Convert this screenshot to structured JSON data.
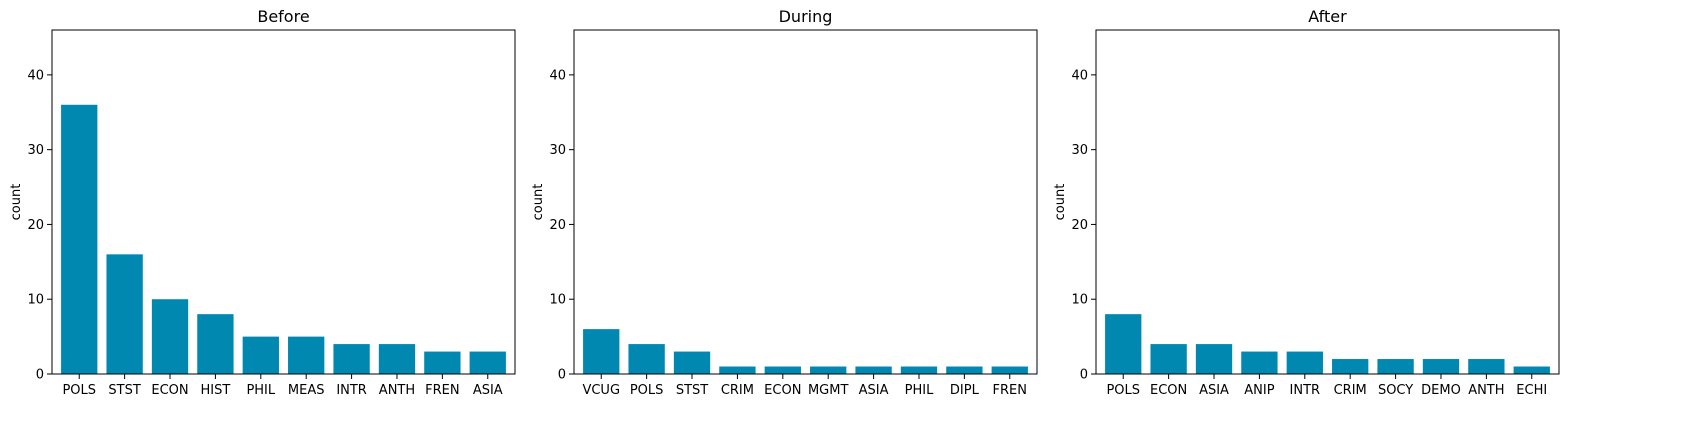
{
  "chart_data": [
    {
      "type": "bar",
      "title": "Before",
      "ylabel": "count",
      "xlabel": "",
      "ylim": [
        0,
        46
      ],
      "yticks": [
        0,
        10,
        20,
        30,
        40
      ],
      "categories": [
        "POLS",
        "STST",
        "ECON",
        "HIST",
        "PHIL",
        "MEAS",
        "INTR",
        "ANTH",
        "FREN",
        "ASIA"
      ],
      "values": [
        36,
        16,
        10,
        8,
        5,
        5,
        4,
        4,
        3,
        3
      ],
      "bar_color": "#0088b0",
      "grid": false
    },
    {
      "type": "bar",
      "title": "During",
      "ylabel": "count",
      "xlabel": "",
      "ylim": [
        0,
        46
      ],
      "yticks": [
        0,
        10,
        20,
        30,
        40
      ],
      "categories": [
        "VCUG",
        "POLS",
        "STST",
        "CRIM",
        "ECON",
        "MGMT",
        "ASIA",
        "PHIL",
        "DIPL",
        "FREN"
      ],
      "values": [
        6,
        4,
        3,
        1,
        1,
        1,
        1,
        1,
        1,
        1
      ],
      "bar_color": "#0088b0",
      "grid": false
    },
    {
      "type": "bar",
      "title": "After",
      "ylabel": "count",
      "xlabel": "",
      "ylim": [
        0,
        46
      ],
      "yticks": [
        0,
        10,
        20,
        30,
        40
      ],
      "categories": [
        "POLS",
        "ECON",
        "ASIA",
        "ANIP",
        "INTR",
        "CRIM",
        "SOCY",
        "DEMO",
        "ANTH",
        "ECHI"
      ],
      "values": [
        8,
        4,
        4,
        3,
        3,
        2,
        2,
        2,
        2,
        1
      ],
      "bar_color": "#0088b0",
      "grid": false
    }
  ]
}
